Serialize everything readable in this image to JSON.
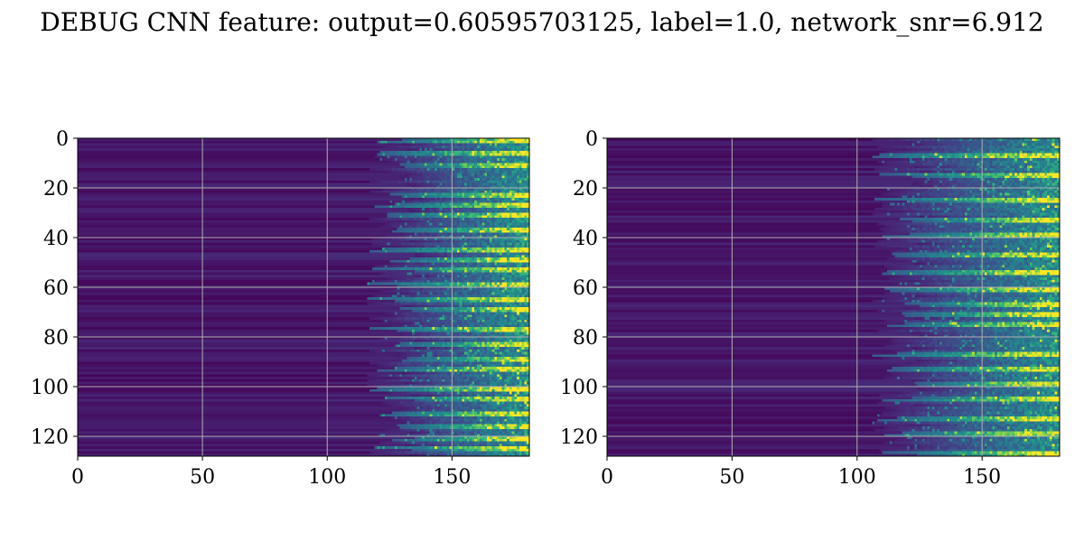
{
  "title": "DEBUG CNN feature: output=0.60595703125, label=1.0, network_snr=6.912",
  "chart_data": [
    {
      "type": "heatmap",
      "colormap": "viridis",
      "grid": true,
      "xlim": [
        0,
        181
      ],
      "ylim": [
        128,
        0
      ],
      "rows": 128,
      "cols": 181,
      "x_ticks": [
        0,
        50,
        100,
        150
      ],
      "y_ticks": [
        0,
        20,
        40,
        60,
        80,
        100,
        120
      ],
      "x_tick_labels": [
        "0",
        "50",
        "100",
        "150"
      ],
      "y_tick_labels": [
        "0",
        "20",
        "40",
        "60",
        "80",
        "100",
        "120"
      ],
      "onset_column": 125,
      "bright_rows": [
        0,
        5,
        10,
        22,
        26,
        30,
        36,
        44,
        48,
        52,
        58,
        64,
        68,
        76,
        82,
        88,
        92,
        100,
        104,
        110,
        115,
        120,
        124
      ]
    },
    {
      "type": "heatmap",
      "colormap": "viridis",
      "grid": true,
      "xlim": [
        0,
        181
      ],
      "ylim": [
        128,
        0
      ],
      "rows": 128,
      "cols": 181,
      "x_ticks": [
        0,
        50,
        100,
        150
      ],
      "y_ticks": [
        0,
        20,
        40,
        60,
        80,
        100,
        120
      ],
      "x_tick_labels": [
        "0",
        "50",
        "100",
        "150"
      ],
      "y_tick_labels": [
        "0",
        "20",
        "40",
        "60",
        "80",
        "100",
        "120"
      ],
      "onset_column": 115,
      "bright_rows": [
        6,
        14,
        24,
        32,
        38,
        46,
        53,
        60,
        66,
        70,
        74,
        86,
        92,
        98,
        104,
        112,
        118,
        126
      ]
    }
  ]
}
